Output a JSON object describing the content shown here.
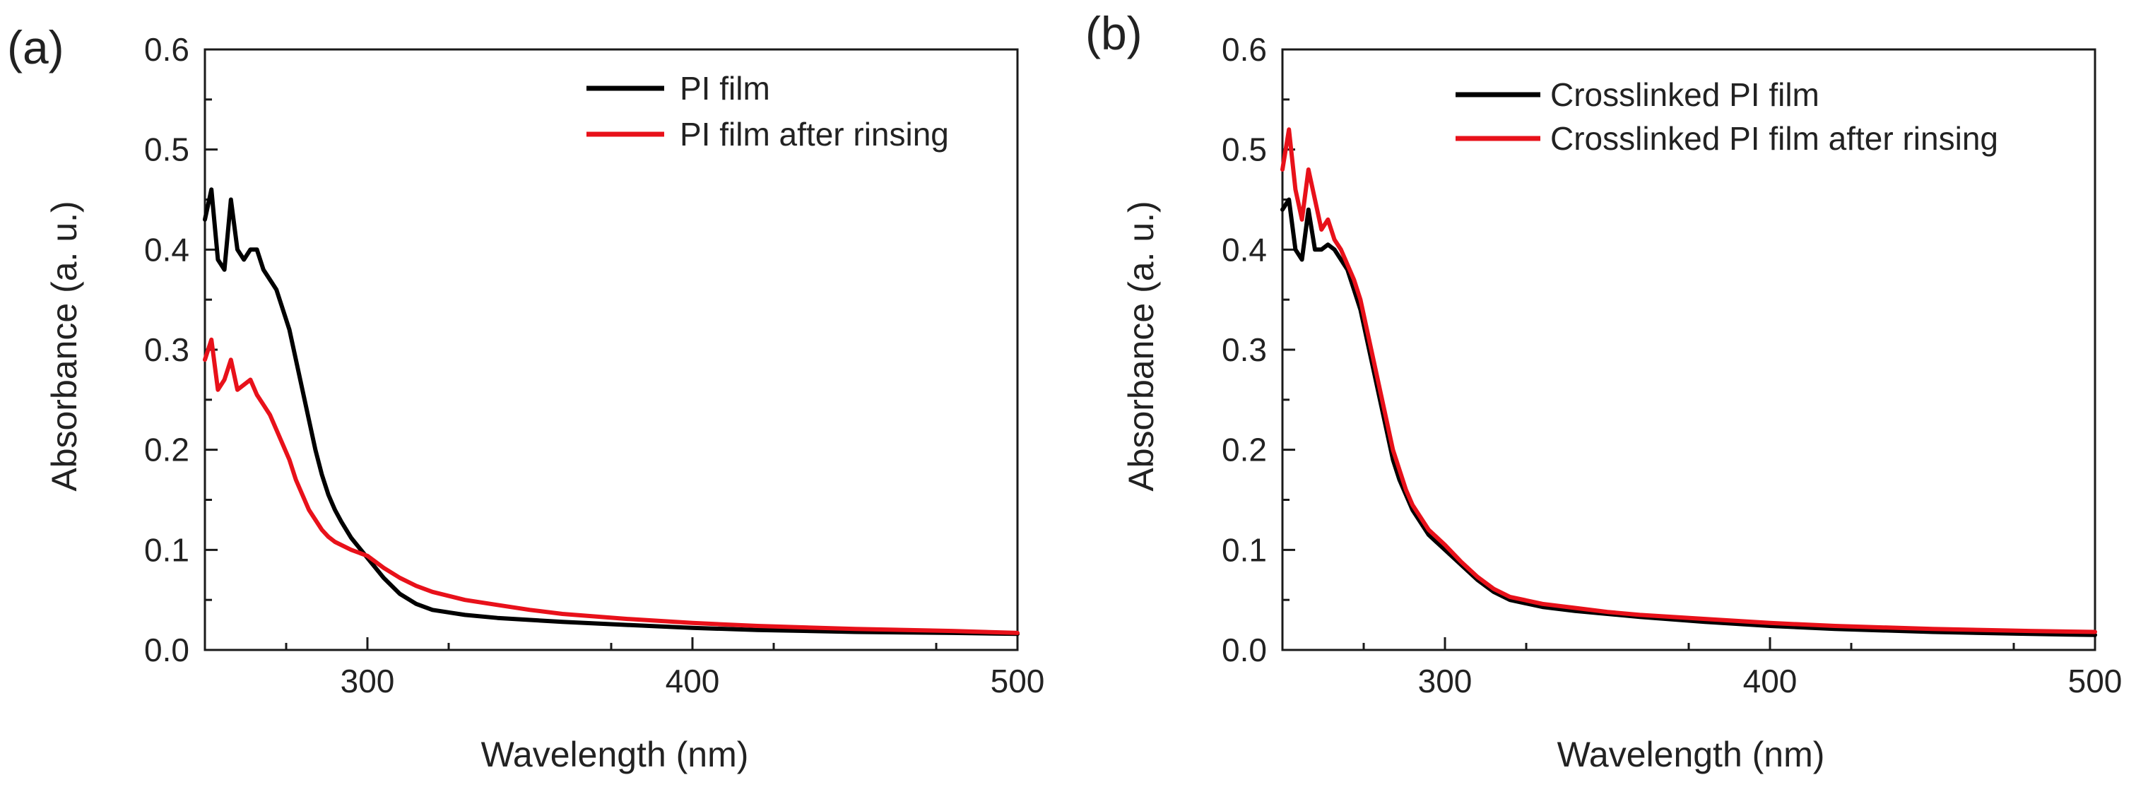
{
  "chart_data": [
    {
      "type": "line",
      "panel_label": "(a)",
      "xlabel": "Wavelength (nm)",
      "ylabel": "Absorbance (a. u.)",
      "xlim": [
        250,
        500
      ],
      "ylim": [
        0.0,
        0.6
      ],
      "xticks": [
        300,
        400,
        500
      ],
      "xtick_labels": [
        "300",
        "400",
        "500"
      ],
      "yticks": [
        0.0,
        0.1,
        0.2,
        0.3,
        0.4,
        0.5,
        0.6
      ],
      "ytick_labels": [
        "0.0",
        "0.1",
        "0.2",
        "0.3",
        "0.4",
        "0.5",
        "0.6"
      ],
      "legend_position": "top-right",
      "series": [
        {
          "name": "PI film",
          "color": "#000000",
          "x": [
            250,
            252,
            254,
            256,
            258,
            260,
            262,
            264,
            266,
            268,
            270,
            272,
            274,
            276,
            278,
            280,
            282,
            284,
            286,
            288,
            290,
            292,
            295,
            300,
            305,
            310,
            315,
            320,
            330,
            340,
            350,
            360,
            380,
            400,
            420,
            450,
            480,
            500
          ],
          "y": [
            0.43,
            0.46,
            0.39,
            0.38,
            0.45,
            0.4,
            0.39,
            0.4,
            0.4,
            0.38,
            0.37,
            0.36,
            0.34,
            0.32,
            0.29,
            0.26,
            0.23,
            0.2,
            0.175,
            0.155,
            0.14,
            0.128,
            0.112,
            0.092,
            0.072,
            0.056,
            0.046,
            0.04,
            0.035,
            0.032,
            0.03,
            0.028,
            0.025,
            0.022,
            0.02,
            0.018,
            0.017,
            0.016
          ]
        },
        {
          "name": "PI film after rinsing",
          "color": "#e8111a",
          "x": [
            250,
            252,
            254,
            256,
            258,
            260,
            262,
            264,
            266,
            268,
            270,
            272,
            274,
            276,
            278,
            280,
            282,
            284,
            286,
            288,
            290,
            295,
            300,
            305,
            310,
            315,
            320,
            330,
            340,
            350,
            360,
            380,
            400,
            420,
            450,
            480,
            500
          ],
          "y": [
            0.29,
            0.31,
            0.26,
            0.27,
            0.29,
            0.26,
            0.265,
            0.27,
            0.255,
            0.245,
            0.235,
            0.22,
            0.205,
            0.19,
            0.17,
            0.155,
            0.14,
            0.13,
            0.12,
            0.113,
            0.108,
            0.1,
            0.094,
            0.082,
            0.072,
            0.064,
            0.058,
            0.05,
            0.045,
            0.04,
            0.036,
            0.031,
            0.027,
            0.024,
            0.021,
            0.019,
            0.017
          ]
        }
      ]
    },
    {
      "type": "line",
      "panel_label": "(b)",
      "xlabel": "Wavelength (nm)",
      "ylabel": "Absorbance (a. u.)",
      "xlim": [
        250,
        500
      ],
      "ylim": [
        0.0,
        0.6
      ],
      "xticks": [
        300,
        400,
        500
      ],
      "xtick_labels": [
        "300",
        "400",
        "500"
      ],
      "yticks": [
        0.0,
        0.1,
        0.2,
        0.3,
        0.4,
        0.5,
        0.6
      ],
      "ytick_labels": [
        "0.0",
        "0.1",
        "0.2",
        "0.3",
        "0.4",
        "0.5",
        "0.6"
      ],
      "legend_position": "top-right",
      "series": [
        {
          "name": "Crosslinked PI film",
          "color": "#000000",
          "x": [
            250,
            252,
            254,
            256,
            258,
            260,
            262,
            264,
            266,
            268,
            270,
            272,
            274,
            276,
            278,
            280,
            282,
            284,
            286,
            288,
            290,
            295,
            300,
            305,
            310,
            315,
            320,
            330,
            340,
            350,
            360,
            380,
            400,
            420,
            450,
            480,
            500
          ],
          "y": [
            0.44,
            0.45,
            0.4,
            0.39,
            0.44,
            0.4,
            0.4,
            0.405,
            0.4,
            0.39,
            0.38,
            0.36,
            0.34,
            0.31,
            0.28,
            0.25,
            0.22,
            0.19,
            0.17,
            0.155,
            0.14,
            0.115,
            0.1,
            0.085,
            0.07,
            0.058,
            0.05,
            0.043,
            0.039,
            0.036,
            0.033,
            0.028,
            0.024,
            0.021,
            0.018,
            0.016,
            0.015
          ]
        },
        {
          "name": "Crosslinked PI film after rinsing",
          "color": "#e8111a",
          "x": [
            250,
            252,
            254,
            256,
            258,
            260,
            262,
            264,
            266,
            268,
            270,
            272,
            274,
            276,
            278,
            280,
            282,
            284,
            286,
            288,
            290,
            295,
            300,
            305,
            310,
            315,
            320,
            330,
            340,
            350,
            360,
            380,
            400,
            420,
            450,
            480,
            500
          ],
          "y": [
            0.48,
            0.52,
            0.46,
            0.43,
            0.48,
            0.45,
            0.42,
            0.43,
            0.41,
            0.4,
            0.385,
            0.37,
            0.35,
            0.32,
            0.29,
            0.26,
            0.23,
            0.2,
            0.18,
            0.16,
            0.145,
            0.12,
            0.105,
            0.088,
            0.073,
            0.061,
            0.053,
            0.046,
            0.042,
            0.038,
            0.035,
            0.031,
            0.027,
            0.024,
            0.021,
            0.019,
            0.018
          ]
        }
      ]
    }
  ]
}
